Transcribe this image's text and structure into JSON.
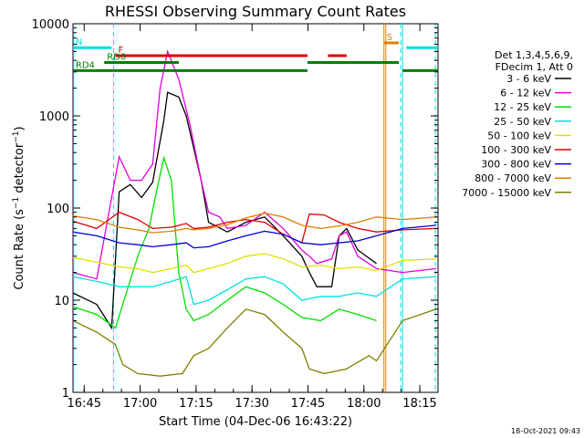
{
  "chart_data": {
    "type": "line",
    "title": "RHESSI Observing Summary Count Rates",
    "xlabel": "Start Time (04-Dec-06 16:43:22)",
    "ylabel": "Count Rate (s⁻¹ detector⁻¹)",
    "ylabel_parts": {
      "main": "Count Rate (s",
      "sup1": "−1",
      "mid": " detector",
      "sup2": "−1",
      "end": ")"
    },
    "y_scale": "log",
    "ylim": [
      1,
      10000
    ],
    "y_ticks": [
      {
        "value": 1,
        "label": "1"
      },
      {
        "value": 10,
        "label": "10"
      },
      {
        "value": 100,
        "label": "100"
      },
      {
        "value": 1000,
        "label": "1000"
      },
      {
        "value": 10000,
        "label": "10000"
      }
    ],
    "x_range_minutes": [
      -1.37,
      96.5
    ],
    "x_ticks": [
      {
        "value": 1.63,
        "label": "16:45"
      },
      {
        "value": 16.63,
        "label": "17:00"
      },
      {
        "value": 31.63,
        "label": "17:15"
      },
      {
        "value": 46.63,
        "label": "17:30"
      },
      {
        "value": 61.63,
        "label": "17:45"
      },
      {
        "value": 76.63,
        "label": "18:00"
      },
      {
        "value": 91.63,
        "label": "18:15"
      }
    ],
    "legend_header": [
      "Det 1,3,4,5,6,9,",
      "FDecim 1, Att 0"
    ],
    "legend_placement": "right",
    "timestamp": "18-Oct-2021 09:43",
    "series": [
      {
        "name": "3 - 6 keV",
        "color": "#000000",
        "points": [
          [
            -1.4,
            12
          ],
          [
            5,
            9
          ],
          [
            9,
            5
          ],
          [
            11,
            150
          ],
          [
            14,
            180
          ],
          [
            17,
            130
          ],
          [
            20,
            190
          ],
          [
            23,
            900
          ],
          [
            24,
            1800
          ],
          [
            27,
            1600
          ],
          [
            29,
            1000
          ],
          [
            33,
            200
          ],
          [
            35,
            70
          ],
          [
            40,
            55
          ],
          [
            45,
            70
          ],
          [
            50,
            80
          ],
          [
            55,
            50
          ],
          [
            60,
            30
          ],
          [
            62,
            20
          ],
          [
            64,
            14
          ],
          [
            68,
            14
          ],
          [
            70,
            50
          ],
          [
            72,
            60
          ],
          [
            75,
            35
          ],
          [
            80,
            25
          ]
        ]
      },
      {
        "name": "6 - 12 keV",
        "color": "#e000e0",
        "points": [
          [
            -1.4,
            20
          ],
          [
            5,
            17
          ],
          [
            11,
            360
          ],
          [
            14,
            200
          ],
          [
            17,
            200
          ],
          [
            20,
            300
          ],
          [
            22,
            2000
          ],
          [
            24,
            5000
          ],
          [
            27,
            2500
          ],
          [
            30,
            800
          ],
          [
            33,
            200
          ],
          [
            35,
            90
          ],
          [
            38,
            80
          ],
          [
            40,
            60
          ],
          [
            45,
            65
          ],
          [
            50,
            90
          ],
          [
            55,
            60
          ],
          [
            60,
            35
          ],
          [
            62,
            30
          ],
          [
            64,
            25
          ],
          [
            68,
            28
          ],
          [
            70,
            50
          ],
          [
            72,
            55
          ],
          [
            75,
            30
          ],
          [
            80,
            22
          ],
          [
            87,
            20
          ],
          [
            96,
            22
          ]
        ]
      },
      {
        "name": "12 - 25 keV",
        "color": "#00e000",
        "points": [
          [
            -1.4,
            8.5
          ],
          [
            5,
            7
          ],
          [
            10,
            5
          ],
          [
            12,
            9
          ],
          [
            16,
            30
          ],
          [
            19,
            60
          ],
          [
            21,
            150
          ],
          [
            23,
            350
          ],
          [
            25,
            200
          ],
          [
            27,
            20
          ],
          [
            29,
            8
          ],
          [
            31,
            6
          ],
          [
            35,
            7
          ],
          [
            40,
            10
          ],
          [
            45,
            14
          ],
          [
            50,
            12
          ],
          [
            55,
            9
          ],
          [
            60,
            6.5
          ],
          [
            65,
            6
          ],
          [
            70,
            8
          ],
          [
            75,
            7
          ],
          [
            80,
            6
          ]
        ]
      },
      {
        "name": "25 - 50 keV",
        "color": "#00e0e0",
        "points": [
          [
            -1.4,
            18
          ],
          [
            5,
            16
          ],
          [
            11,
            14
          ],
          [
            16,
            14
          ],
          [
            20,
            14
          ],
          [
            25,
            16
          ],
          [
            29,
            18
          ],
          [
            31,
            9
          ],
          [
            35,
            10
          ],
          [
            40,
            13
          ],
          [
            45,
            17
          ],
          [
            50,
            18
          ],
          [
            55,
            15
          ],
          [
            60,
            10
          ],
          [
            65,
            11
          ],
          [
            70,
            11
          ],
          [
            75,
            12
          ],
          [
            80,
            11
          ],
          [
            87,
            17
          ],
          [
            96,
            18
          ]
        ]
      },
      {
        "name": "50 - 100 keV",
        "color": "#e0e000",
        "points": [
          [
            -1.4,
            29
          ],
          [
            5,
            26
          ],
          [
            11,
            23
          ],
          [
            16,
            22
          ],
          [
            20,
            20
          ],
          [
            25,
            22
          ],
          [
            29,
            24
          ],
          [
            31,
            20
          ],
          [
            35,
            22
          ],
          [
            40,
            25
          ],
          [
            45,
            30
          ],
          [
            50,
            32
          ],
          [
            55,
            28
          ],
          [
            60,
            23
          ],
          [
            65,
            24
          ],
          [
            70,
            22
          ],
          [
            75,
            23
          ],
          [
            80,
            21
          ],
          [
            87,
            27
          ],
          [
            96,
            28
          ]
        ]
      },
      {
        "name": "100 - 300 keV",
        "color": "#e00000",
        "points": [
          [
            -1.4,
            72
          ],
          [
            5,
            60
          ],
          [
            11,
            90
          ],
          [
            16,
            75
          ],
          [
            20,
            60
          ],
          [
            25,
            62
          ],
          [
            29,
            68
          ],
          [
            31,
            60
          ],
          [
            35,
            62
          ],
          [
            40,
            70
          ],
          [
            45,
            75
          ],
          [
            50,
            70
          ],
          [
            55,
            52
          ],
          [
            60,
            42
          ],
          [
            62,
            86
          ],
          [
            66,
            84
          ],
          [
            70,
            70
          ],
          [
            75,
            60
          ],
          [
            80,
            55
          ],
          [
            87,
            58
          ],
          [
            96,
            60
          ]
        ]
      },
      {
        "name": "300 - 800 keV",
        "color": "#0000e0",
        "points": [
          [
            -1.4,
            55
          ],
          [
            5,
            50
          ],
          [
            11,
            42
          ],
          [
            16,
            40
          ],
          [
            20,
            38
          ],
          [
            25,
            40
          ],
          [
            29,
            42
          ],
          [
            31,
            37
          ],
          [
            35,
            38
          ],
          [
            40,
            44
          ],
          [
            45,
            50
          ],
          [
            50,
            56
          ],
          [
            55,
            52
          ],
          [
            60,
            42
          ],
          [
            65,
            40
          ],
          [
            70,
            42
          ],
          [
            75,
            44
          ],
          [
            80,
            50
          ],
          [
            87,
            60
          ],
          [
            96,
            65
          ]
        ]
      },
      {
        "name": "800 - 7000 keV",
        "color": "#e08000",
        "points": [
          [
            -1.4,
            82
          ],
          [
            5,
            75
          ],
          [
            11,
            62
          ],
          [
            16,
            58
          ],
          [
            20,
            54
          ],
          [
            25,
            56
          ],
          [
            29,
            60
          ],
          [
            31,
            58
          ],
          [
            35,
            60
          ],
          [
            40,
            66
          ],
          [
            45,
            78
          ],
          [
            50,
            88
          ],
          [
            55,
            80
          ],
          [
            60,
            65
          ],
          [
            65,
            60
          ],
          [
            70,
            64
          ],
          [
            75,
            70
          ],
          [
            80,
            80
          ],
          [
            87,
            75
          ],
          [
            96,
            80
          ]
        ]
      },
      {
        "name": "7000 - 15000 keV",
        "color": "#808000",
        "points": [
          [
            -1.4,
            6
          ],
          [
            5,
            4.5
          ],
          [
            10,
            3.3
          ],
          [
            12,
            2
          ],
          [
            16,
            1.6
          ],
          [
            22,
            1.5
          ],
          [
            28,
            1.6
          ],
          [
            31,
            2.5
          ],
          [
            35,
            3
          ],
          [
            40,
            5
          ],
          [
            45,
            8
          ],
          [
            50,
            7
          ],
          [
            55,
            4.5
          ],
          [
            60,
            3
          ],
          [
            62,
            1.8
          ],
          [
            66,
            1.6
          ],
          [
            72,
            1.8
          ],
          [
            78,
            2.5
          ],
          [
            80,
            2.2
          ],
          [
            87,
            6
          ],
          [
            96,
            8
          ]
        ]
      }
    ],
    "state_bars": [
      {
        "label": "N",
        "color": "#00e0e0",
        "level": 5500,
        "segments": [
          [
            -1.4,
            9
          ],
          [
            88,
            96.5
          ]
        ]
      },
      {
        "label": "F",
        "color": "#e00000",
        "level": 4500,
        "segments": [
          [
            10,
            61.5
          ],
          [
            67,
            72
          ]
        ]
      },
      {
        "label": "RD0",
        "color": "#008000",
        "level": 3800,
        "segments": [
          [
            7,
            27
          ],
          [
            61.5,
            86
          ]
        ]
      },
      {
        "label": "RD4",
        "color": "#008000",
        "level": 3100,
        "segments": [
          [
            -1.4,
            10
          ],
          [
            10,
            61.5
          ],
          [
            87,
            96.5
          ]
        ]
      },
      {
        "label": "S",
        "color": "#e08000",
        "level": 6200,
        "segments": [
          [
            82,
            86
          ]
        ]
      }
    ],
    "vlines": [
      {
        "x": 9.5,
        "color": "#00e0e0",
        "style": "dashed"
      },
      {
        "x": 86.5,
        "color": "#00e0e0",
        "style": "dashed"
      },
      {
        "x": 95.8,
        "color": "#00e0e0",
        "style": "dashed"
      },
      {
        "x": -1.2,
        "color": "#00e0e0",
        "style": "solid"
      },
      {
        "x": 82,
        "color": "#e08000",
        "style": "solid"
      },
      {
        "x": 82.5,
        "color": "#e08000",
        "style": "solid"
      },
      {
        "x": 87,
        "color": "#00e0e0",
        "style": "solid"
      }
    ]
  }
}
